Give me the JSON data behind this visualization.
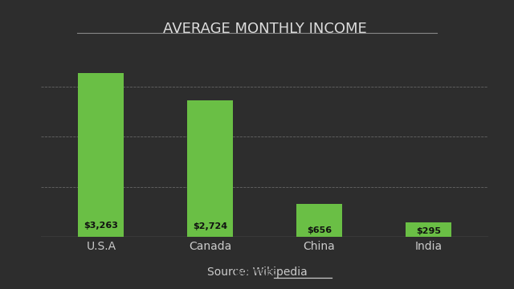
{
  "title": "AVERAGE MONTHLY INCOME",
  "categories": [
    "U.S.A",
    "Canada",
    "China",
    "India"
  ],
  "values": [
    3263,
    2724,
    656,
    295
  ],
  "bar_labels": [
    "$3,263",
    "$2,724",
    "$656",
    "$295"
  ],
  "bar_color": "#6abf45",
  "bg_color": "#2d2d2d",
  "text_color": "#cccccc",
  "title_color": "#dddddd",
  "grid_color": "#666666",
  "label_color": "#111111",
  "source_text": "Source: ",
  "source_link": "Wikipedia",
  "ylim": [
    0,
    3800
  ],
  "yticks": [
    1000,
    2000,
    3000
  ],
  "title_fontsize": 13,
  "label_fontsize": 8,
  "tick_fontsize": 10,
  "source_fontsize": 10
}
